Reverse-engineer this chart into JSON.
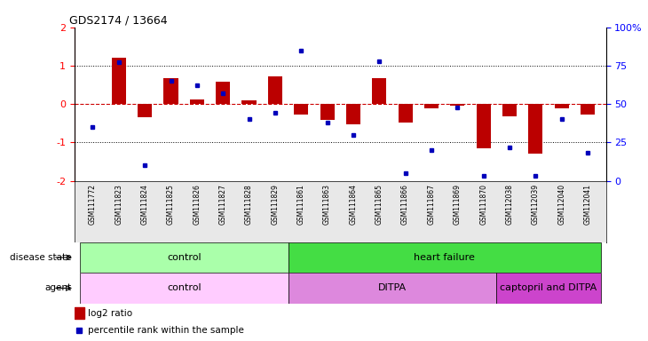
{
  "title": "GDS2174 / 13664",
  "samples": [
    "GSM111772",
    "GSM111823",
    "GSM111824",
    "GSM111825",
    "GSM111826",
    "GSM111827",
    "GSM111828",
    "GSM111829",
    "GSM111861",
    "GSM111863",
    "GSM111864",
    "GSM111865",
    "GSM111866",
    "GSM111867",
    "GSM111869",
    "GSM111870",
    "GSM112038",
    "GSM112039",
    "GSM112040",
    "GSM112041"
  ],
  "log2_ratio": [
    0.0,
    1.2,
    -0.35,
    0.68,
    0.12,
    0.58,
    0.1,
    0.72,
    -0.28,
    -0.42,
    -0.52,
    0.68,
    -0.48,
    -0.12,
    -0.04,
    -1.15,
    -0.32,
    -1.3,
    -0.12,
    -0.28
  ],
  "percentile_rank": [
    35,
    77,
    10,
    65,
    62,
    57,
    40,
    44,
    85,
    38,
    30,
    78,
    5,
    20,
    48,
    3,
    22,
    3,
    40,
    18
  ],
  "disease_state_groups": [
    {
      "label": "control",
      "start": 0,
      "end": 8,
      "color": "#aaffaa"
    },
    {
      "label": "heart failure",
      "start": 8,
      "end": 20,
      "color": "#44dd44"
    }
  ],
  "agent_groups": [
    {
      "label": "control",
      "start": 0,
      "end": 8,
      "color": "#ffccff"
    },
    {
      "label": "DITPA",
      "start": 8,
      "end": 16,
      "color": "#dd88dd"
    },
    {
      "label": "captopril and DITPA",
      "start": 16,
      "end": 20,
      "color": "#cc44cc"
    }
  ],
  "bar_color": "#bb0000",
  "dot_color": "#0000bb",
  "bg_color": "#ffffff",
  "ylim": [
    -2,
    2
  ],
  "y_ticks": [
    -2,
    -1,
    0,
    1,
    2
  ],
  "y2_ticks": [
    0,
    25,
    50,
    75,
    100
  ],
  "y2_labels": [
    "0",
    "25",
    "50",
    "75",
    "100%"
  ],
  "zero_line_color": "#cc0000"
}
